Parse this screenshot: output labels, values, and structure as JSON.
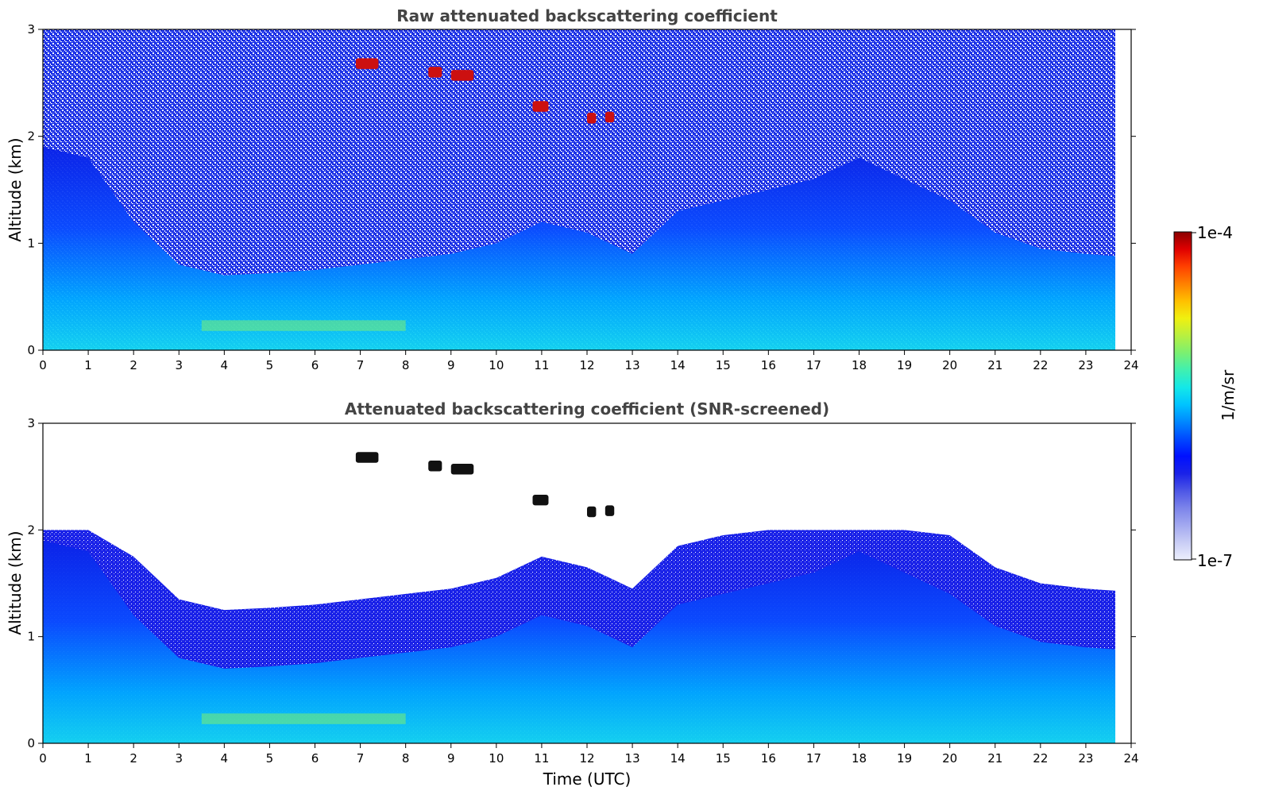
{
  "chart_data": [
    {
      "type": "heatmap",
      "title": "Raw attenuated backscattering coefficient",
      "xlabel": "",
      "ylabel": "Altitude (km)",
      "xlim": [
        0,
        24
      ],
      "ylim": [
        0,
        3
      ],
      "x_ticks": [
        "0",
        "1",
        "2",
        "3",
        "4",
        "5",
        "6",
        "7",
        "8",
        "9",
        "10",
        "11",
        "12",
        "13",
        "14",
        "15",
        "16",
        "17",
        "18",
        "19",
        "20",
        "21",
        "22",
        "23",
        "24"
      ],
      "y_ticks": [
        "0",
        "1",
        "2",
        "3"
      ],
      "data_end_time": 23.65,
      "screened": false
    },
    {
      "type": "heatmap",
      "title": "Attenuated backscattering coefficient (SNR-screened)",
      "xlabel": "Time (UTC)",
      "ylabel": "Altitude (km)",
      "xlim": [
        0,
        24
      ],
      "ylim": [
        0,
        3
      ],
      "x_ticks": [
        "0",
        "1",
        "2",
        "3",
        "4",
        "5",
        "6",
        "7",
        "8",
        "9",
        "10",
        "11",
        "12",
        "13",
        "14",
        "15",
        "16",
        "17",
        "18",
        "19",
        "20",
        "21",
        "22",
        "23",
        "24"
      ],
      "y_ticks": [
        "0",
        "1",
        "2",
        "3"
      ],
      "data_end_time": 23.65,
      "screened": true
    }
  ],
  "colorbar": {
    "label": "1/m/sr",
    "max_label": "1e-4",
    "min_label": "1e-7",
    "range": [
      1e-07,
      0.0001
    ],
    "scale": "log",
    "colors": [
      "#eceffc",
      "#c9cdf5",
      "#a3a9f0",
      "#7c84ea",
      "#4d56e6",
      "#1a22e8",
      "#0010ff",
      "#0048ff",
      "#0088ff",
      "#00c4ff",
      "#14e8e8",
      "#40f0b0",
      "#7cf070",
      "#b8f040",
      "#f0f010",
      "#ffc000",
      "#ff8000",
      "#ff4000",
      "#e00000",
      "#8b0000"
    ]
  },
  "features": {
    "boundary_layer_top_hours": [
      0,
      1,
      2,
      3,
      4,
      5,
      6,
      7,
      8,
      9,
      10,
      11,
      12,
      13,
      14,
      15,
      16,
      17,
      18,
      19,
      20,
      21,
      22,
      23,
      23.65
    ],
    "boundary_layer_top_km": [
      1.9,
      1.8,
      1.2,
      0.8,
      0.7,
      0.72,
      0.75,
      0.8,
      0.85,
      0.9,
      1.0,
      1.2,
      1.1,
      0.9,
      1.3,
      1.4,
      1.5,
      1.6,
      1.8,
      1.6,
      1.4,
      1.1,
      0.95,
      0.9,
      0.88
    ],
    "cloud_segments": [
      {
        "t0": 6.9,
        "t1": 7.4,
        "alt_km": 2.68
      },
      {
        "t0": 8.5,
        "t1": 8.8,
        "alt_km": 2.6
      },
      {
        "t0": 9.0,
        "t1": 9.5,
        "alt_km": 2.57
      },
      {
        "t0": 10.8,
        "t1": 11.15,
        "alt_km": 2.28
      },
      {
        "t0": 12.0,
        "t1": 12.2,
        "alt_km": 2.17
      },
      {
        "t0": 12.4,
        "t1": 12.6,
        "alt_km": 2.18
      }
    ]
  }
}
